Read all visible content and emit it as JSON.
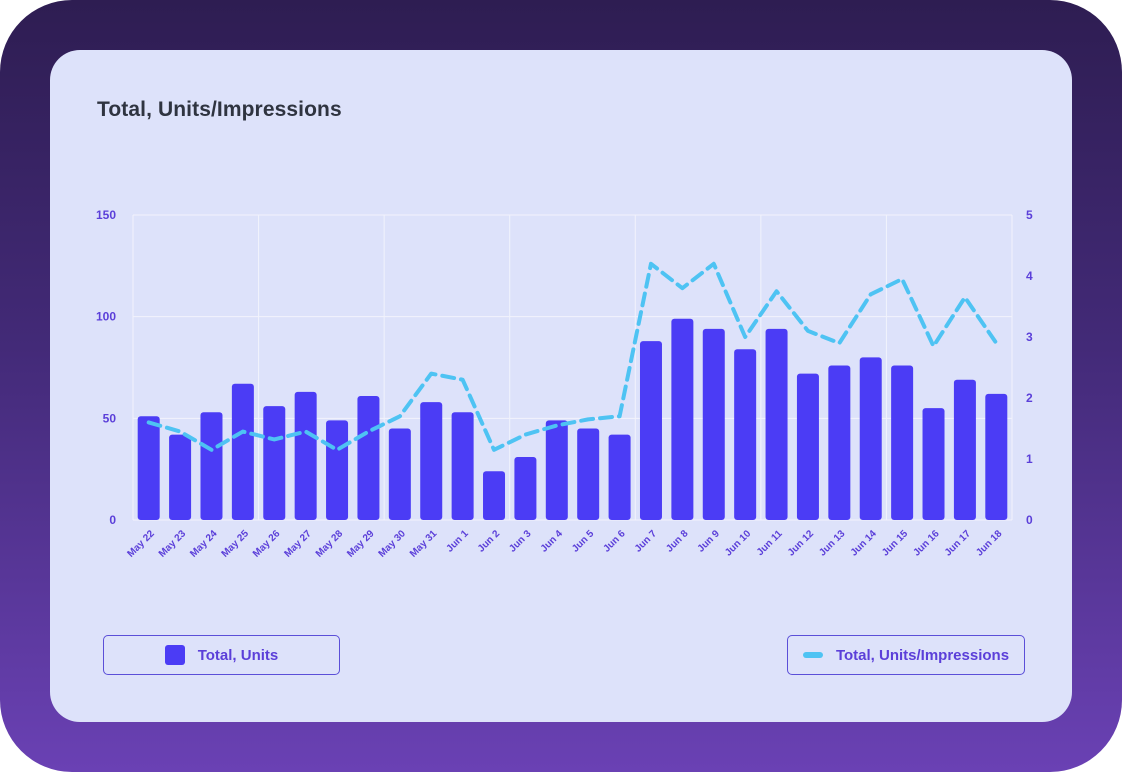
{
  "title": "Total, Units/Impressions",
  "legend": {
    "units_label": "Total, Units",
    "impressions_label": "Total, Units/Impressions"
  },
  "colors": {
    "bar": "#4b3cf5",
    "line": "#4ec3f3",
    "axis_text": "#5b3fd9",
    "grid": "#f2f3fc",
    "card": "#dde2fa"
  },
  "chart_data": {
    "type": "bar",
    "title": "Total, Units/Impressions",
    "categories": [
      "May 22",
      "May 23",
      "May 24",
      "May 25",
      "May 26",
      "May 27",
      "May 28",
      "May 29",
      "May 30",
      "May 31",
      "Jun 1",
      "Jun 2",
      "Jun 3",
      "Jun 4",
      "Jun 5",
      "Jun 6",
      "Jun 7",
      "Jun 8",
      "Jun 9",
      "Jun 10",
      "Jun 11",
      "Jun 12",
      "Jun 13",
      "Jun 14",
      "Jun 15",
      "Jun 16",
      "Jun 17",
      "Jun 18"
    ],
    "series": [
      {
        "name": "Total, Units",
        "type": "bar",
        "axis": "left",
        "values": [
          51,
          42,
          53,
          67,
          56,
          63,
          49,
          61,
          45,
          58,
          53,
          24,
          31,
          49,
          45,
          42,
          88,
          99,
          94,
          84,
          94,
          72,
          76,
          80,
          76,
          55,
          69,
          62
        ]
      },
      {
        "name": "Total, Units/Impressions",
        "type": "line",
        "axis": "right",
        "style": "dashed",
        "values": [
          1.6,
          1.45,
          1.15,
          1.45,
          1.32,
          1.45,
          1.15,
          1.45,
          1.7,
          2.4,
          2.3,
          1.15,
          1.4,
          1.55,
          1.65,
          1.7,
          4.2,
          3.8,
          4.2,
          3.0,
          3.75,
          3.1,
          2.9,
          3.7,
          3.95,
          2.85,
          3.65,
          2.9
        ]
      }
    ],
    "y_left": {
      "min": 0,
      "max": 150,
      "ticks": [
        "0",
        "50",
        "100",
        "150"
      ]
    },
    "y_right": {
      "min": 0,
      "max": 5,
      "ticks": [
        "0",
        "1",
        "2",
        "3",
        "4",
        "5"
      ]
    },
    "grid": true,
    "legend_position": "bottom"
  }
}
